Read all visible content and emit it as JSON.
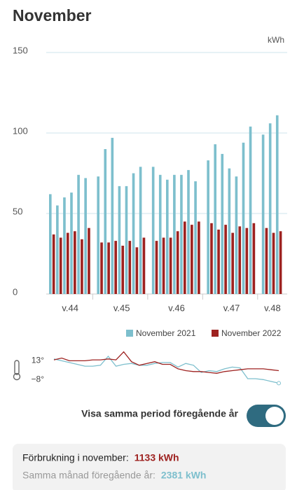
{
  "chart_data": [
    {
      "type": "bar",
      "title": "November",
      "y_unit": "kWh",
      "groups": [
        "v.44",
        "v.45",
        "v.46",
        "v.47",
        "v.48"
      ],
      "series": [
        {
          "name": "November 2021",
          "color": "#7dbfcd",
          "values": [
            [
              62,
              55,
              60,
              63,
              74,
              72
            ],
            [
              73,
              90,
              97,
              67,
              67,
              75,
              79
            ],
            [
              79,
              74,
              71,
              74,
              74,
              77,
              70
            ],
            [
              83,
              93,
              87,
              78,
              73,
              94,
              104
            ],
            [
              99,
              106,
              111
            ]
          ]
        },
        {
          "name": "November 2022",
          "color": "#9e2220",
          "values": [
            [
              37,
              35,
              38,
              39,
              34,
              41
            ],
            [
              32,
              32,
              33,
              30,
              33,
              29,
              35
            ],
            [
              33,
              35,
              35,
              39,
              45,
              43,
              45
            ],
            [
              44,
              40,
              43,
              38,
              42,
              41,
              44
            ],
            [
              41,
              38,
              39
            ]
          ]
        }
      ],
      "ylim": [
        0,
        150
      ],
      "yticks": [
        0,
        50,
        100,
        150
      ],
      "grid": true
    },
    {
      "type": "line",
      "series": [
        {
          "color": "#7dbfcd",
          "values": [
            15,
            13,
            11,
            9,
            7,
            7,
            8,
            18,
            7,
            9,
            10,
            8,
            8,
            10,
            11,
            11,
            6,
            10,
            8,
            0,
            2,
            1,
            4,
            6,
            5,
            -7,
            -7,
            -8,
            -10,
            -12
          ]
        },
        {
          "color": "#9e2220",
          "values": [
            14,
            16,
            13,
            13,
            13,
            14,
            14,
            15,
            14,
            23,
            12,
            8,
            10,
            12,
            9,
            9,
            4,
            2,
            1,
            1,
            0,
            -1,
            1,
            2,
            3,
            4,
            4,
            4,
            3,
            2
          ]
        }
      ],
      "ylim": [
        -14,
        25
      ],
      "yticks": [
        {
          "value": 13,
          "label": "13°"
        },
        {
          "value": -8,
          "label": "−8°"
        }
      ]
    }
  ],
  "toggle": {
    "label": "Visa samma period föregående år",
    "on": true
  },
  "summary": [
    {
      "label": "Förbrukning i november:",
      "value": "1133 kWh",
      "color": "#9e2220",
      "label_color": "#222"
    },
    {
      "label": "Samma månad föregående år:",
      "value": "2381 kWh",
      "color": "#7dbfcd",
      "label_color": "#999"
    }
  ]
}
